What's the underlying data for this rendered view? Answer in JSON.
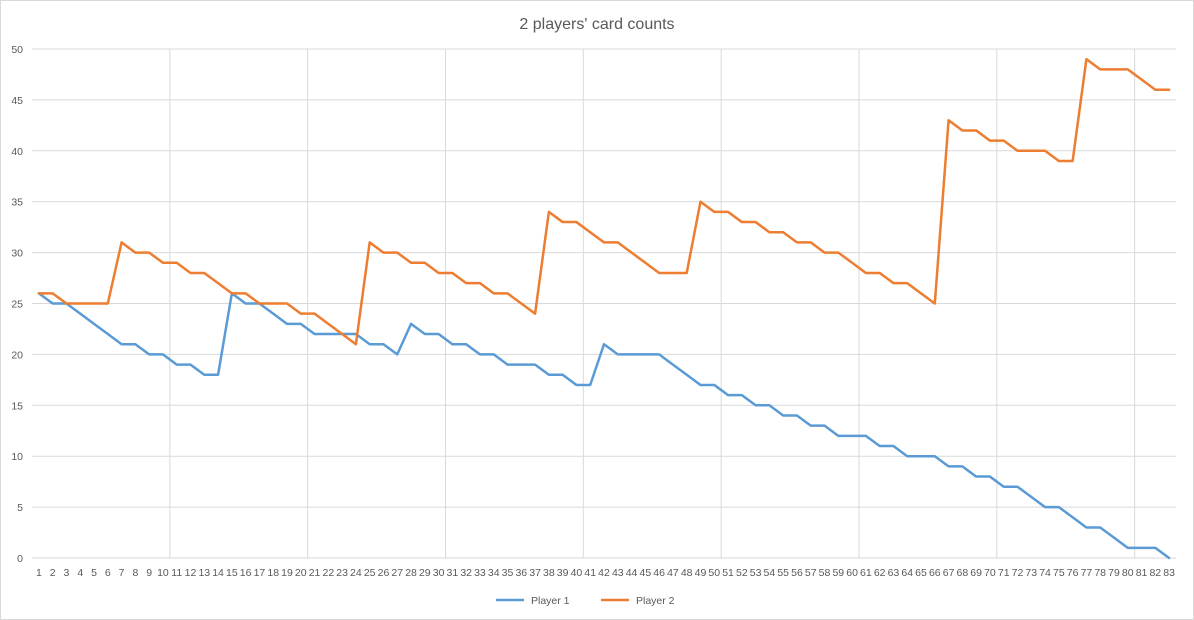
{
  "chart_data": {
    "type": "line",
    "title": "2 players' card counts",
    "xlabel": "",
    "ylabel": "",
    "ylim": [
      0,
      50
    ],
    "yticks": [
      0,
      5,
      10,
      15,
      20,
      25,
      30,
      35,
      40,
      45,
      50
    ],
    "grid": true,
    "legend": "bottom",
    "x": [
      1,
      2,
      3,
      4,
      5,
      6,
      7,
      8,
      9,
      10,
      11,
      12,
      13,
      14,
      15,
      16,
      17,
      18,
      19,
      20,
      21,
      22,
      23,
      24,
      25,
      26,
      27,
      28,
      29,
      30,
      31,
      32,
      33,
      34,
      35,
      36,
      37,
      38,
      39,
      40,
      41,
      42,
      43,
      44,
      45,
      46,
      47,
      48,
      49,
      50,
      51,
      52,
      53,
      54,
      55,
      56,
      57,
      58,
      59,
      60,
      61,
      62,
      63,
      64,
      65,
      66,
      67,
      68,
      69,
      70,
      71,
      72,
      73,
      74,
      75,
      76,
      77,
      78,
      79,
      80,
      81,
      82,
      83
    ],
    "series": [
      {
        "name": "Player 1",
        "color": "#5b9bd5",
        "values": [
          26,
          25,
          25,
          24,
          23,
          22,
          21,
          21,
          20,
          20,
          19,
          19,
          18,
          18,
          26,
          25,
          25,
          24,
          23,
          23,
          22,
          22,
          22,
          22,
          21,
          21,
          20,
          23,
          22,
          22,
          21,
          21,
          20,
          20,
          19,
          19,
          19,
          18,
          18,
          17,
          17,
          21,
          20,
          20,
          20,
          20,
          19,
          18,
          17,
          17,
          16,
          16,
          15,
          15,
          14,
          14,
          13,
          13,
          12,
          12,
          12,
          11,
          11,
          10,
          10,
          10,
          9,
          9,
          8,
          8,
          7,
          7,
          6,
          5,
          5,
          4,
          3,
          3,
          2,
          1,
          1,
          1,
          0
        ]
      },
      {
        "name": "Player 2",
        "color": "#ed7d31",
        "values": [
          26,
          26,
          25,
          25,
          25,
          25,
          31,
          30,
          30,
          29,
          29,
          28,
          28,
          27,
          26,
          26,
          25,
          25,
          25,
          24,
          24,
          23,
          22,
          21,
          31,
          30,
          30,
          29,
          29,
          28,
          28,
          27,
          27,
          26,
          26,
          25,
          24,
          34,
          33,
          33,
          32,
          31,
          31,
          30,
          29,
          28,
          28,
          28,
          35,
          34,
          34,
          33,
          33,
          32,
          32,
          31,
          31,
          30,
          30,
          29,
          28,
          28,
          27,
          27,
          26,
          25,
          43,
          42,
          42,
          41,
          41,
          40,
          40,
          40,
          39,
          39,
          49,
          48,
          48,
          48,
          47,
          46,
          46
        ]
      }
    ]
  }
}
